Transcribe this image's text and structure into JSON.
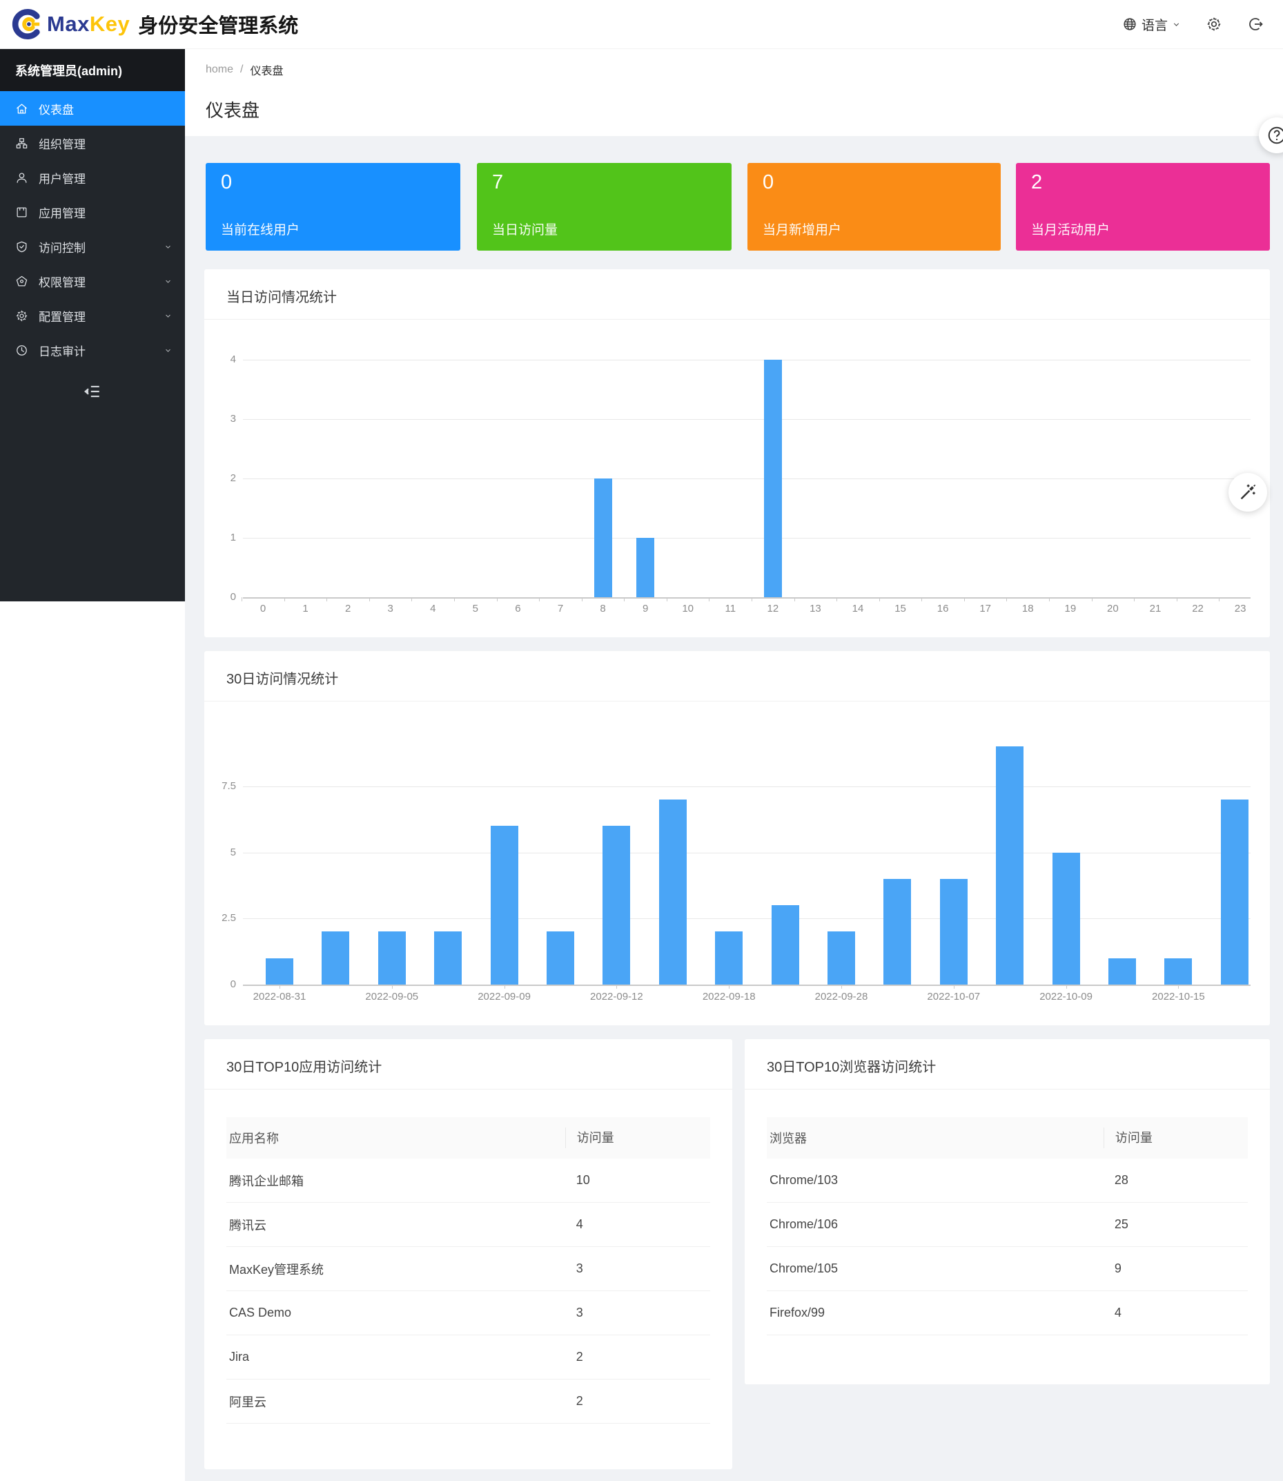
{
  "header": {
    "brand_max": "Max",
    "brand_key": "Key",
    "app_title": "身份安全管理系统",
    "language_label": "语言"
  },
  "sidebar": {
    "user_label": "系统管理员(admin)",
    "items": [
      {
        "label": "仪表盘",
        "icon": "home-icon",
        "active": true,
        "expandable": false
      },
      {
        "label": "组织管理",
        "icon": "org-icon",
        "active": false,
        "expandable": false
      },
      {
        "label": "用户管理",
        "icon": "user-icon",
        "active": false,
        "expandable": false
      },
      {
        "label": "应用管理",
        "icon": "app-icon",
        "active": false,
        "expandable": false
      },
      {
        "label": "访问控制",
        "icon": "shield-check-icon",
        "active": false,
        "expandable": true
      },
      {
        "label": "权限管理",
        "icon": "pentagon-icon",
        "active": false,
        "expandable": true
      },
      {
        "label": "配置管理",
        "icon": "gear-icon",
        "active": false,
        "expandable": true
      },
      {
        "label": "日志审计",
        "icon": "clock-icon",
        "active": false,
        "expandable": true
      }
    ]
  },
  "breadcrumb": {
    "home": "home",
    "separator": "/",
    "current": "仪表盘"
  },
  "page": {
    "title": "仪表盘"
  },
  "stat_cards": [
    {
      "value": "0",
      "label": "当前在线用户",
      "color": "#1890ff"
    },
    {
      "value": "7",
      "label": "当日访问量",
      "color": "#52c41a"
    },
    {
      "value": "0",
      "label": "当月新增用户",
      "color": "#fa8c16"
    },
    {
      "value": "2",
      "label": "当月活动用户",
      "color": "#eb2f96"
    }
  ],
  "chart_data": [
    {
      "type": "bar",
      "title": "当日访问情况统计",
      "categories": [
        "0",
        "1",
        "2",
        "3",
        "4",
        "5",
        "6",
        "7",
        "8",
        "9",
        "10",
        "11",
        "12",
        "13",
        "14",
        "15",
        "16",
        "17",
        "18",
        "19",
        "20",
        "21",
        "22",
        "23"
      ],
      "values": [
        0,
        0,
        0,
        0,
        0,
        0,
        0,
        0,
        2,
        1,
        0,
        0,
        4,
        0,
        0,
        0,
        0,
        0,
        0,
        0,
        0,
        0,
        0,
        0
      ],
      "xlabel": "",
      "ylabel": "",
      "ylim": [
        0,
        4
      ],
      "yticks": [
        0,
        1,
        2,
        3,
        4
      ],
      "grid": true,
      "legend": "none",
      "bar_color": "#4aa5f6"
    },
    {
      "type": "bar",
      "title": "30日访问情况统计",
      "categories": [
        "2022-08-31",
        "",
        "2022-09-05",
        "",
        "2022-09-09",
        "",
        "2022-09-12",
        "",
        "2022-09-18",
        "",
        "2022-09-28",
        "",
        "2022-10-07",
        "",
        "2022-10-09",
        "",
        "2022-10-15",
        ""
      ],
      "values": [
        1,
        2,
        2,
        2,
        6,
        2,
        6,
        7,
        2,
        3,
        2,
        4,
        4,
        9,
        5,
        1,
        1,
        7
      ],
      "xlabel": "",
      "ylabel": "",
      "ylim": [
        0,
        9
      ],
      "yticks": [
        0,
        2.5,
        5,
        7.5
      ],
      "grid": true,
      "legend": "none",
      "bar_color": "#4aa5f6"
    }
  ],
  "tables": [
    {
      "title": "30日TOP10应用访问统计",
      "headers": [
        "应用名称",
        "访问量"
      ],
      "rows": [
        [
          "腾讯企业邮箱",
          "10"
        ],
        [
          "腾讯云",
          "4"
        ],
        [
          "MaxKey管理系统",
          "3"
        ],
        [
          "CAS Demo",
          "3"
        ],
        [
          "Jira",
          "2"
        ],
        [
          "阿里云",
          "2"
        ]
      ]
    },
    {
      "title": "30日TOP10浏览器访问统计",
      "headers": [
        "浏览器",
        "访问量"
      ],
      "rows": [
        [
          "Chrome/103",
          "28"
        ],
        [
          "Chrome/106",
          "25"
        ],
        [
          "Chrome/105",
          "9"
        ],
        [
          "Firefox/99",
          "4"
        ]
      ]
    }
  ],
  "colors": {
    "primary": "#1890ff",
    "bar": "#4aa5f6",
    "sidebar_bg": "#22262b",
    "sidebar_header_bg": "#17191d",
    "content_bg": "#f0f2f5",
    "brand_blue": "#2b3a91",
    "brand_yellow": "#fdc40a"
  }
}
